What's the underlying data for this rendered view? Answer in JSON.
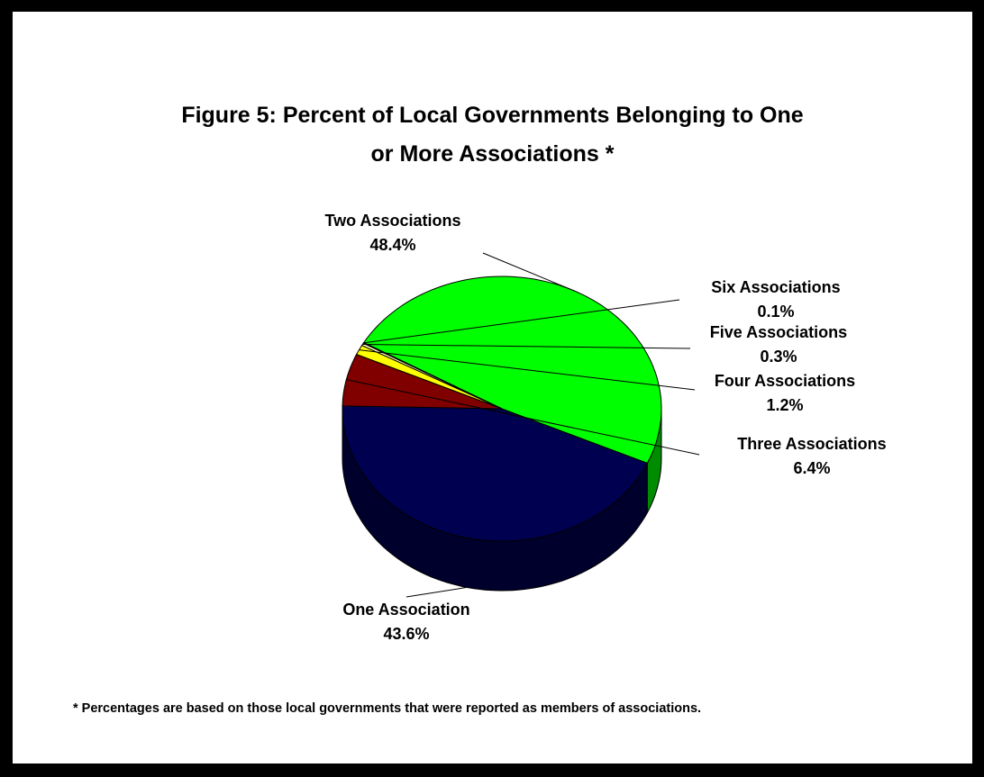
{
  "title_line1": "Figure 5:  Percent of Local Governments Belonging to One",
  "title_line2": "or More Associations *",
  "footnote": "* Percentages are based on those local governments that were reported as members of associations.",
  "chart_data": {
    "type": "pie",
    "title": "Figure 5:  Percent of Local Governments Belonging to One or More Associations *",
    "categories": [
      "One Association",
      "Two Associations",
      "Six Associations",
      "Five Associations",
      "Four Associations",
      "Three Associations"
    ],
    "values": [
      43.6,
      48.4,
      0.1,
      0.3,
      1.2,
      6.4
    ],
    "value_labels": [
      "43.6%",
      "48.4%",
      "0.1%",
      "0.3%",
      "1.2%",
      "6.4%"
    ],
    "colors": [
      "#000050",
      "#00FF00",
      "#8080C0",
      "#FFFFC0",
      "#FFFF00",
      "#800000"
    ],
    "style": "3d"
  }
}
